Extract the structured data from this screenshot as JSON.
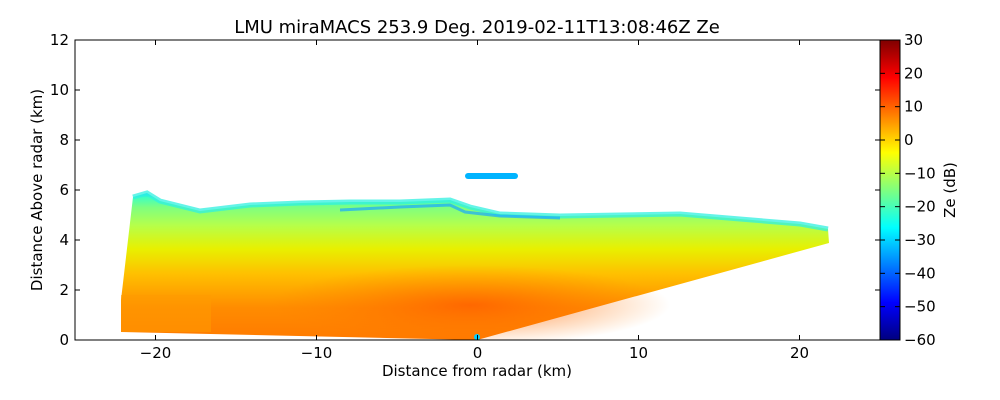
{
  "chart_data": {
    "type": "heatmap",
    "title": "LMU miraMACS 253.9 Deg. 2019-02-11T13:08:46Z  Ze",
    "xlabel": "Distance from radar (km)",
    "ylabel": "Distance Above radar  (km)",
    "xlim": [
      -25,
      25
    ],
    "ylim": [
      0,
      12
    ],
    "x_ticks": [
      -20,
      -10,
      0,
      10,
      20
    ],
    "x_tick_labels": [
      "−20",
      "−10",
      "0",
      "10",
      "20"
    ],
    "y_ticks": [
      0,
      2,
      4,
      6,
      8,
      10,
      12
    ],
    "y_tick_labels": [
      "0",
      "2",
      "4",
      "6",
      "8",
      "10",
      "12"
    ],
    "colorbar": {
      "label": "Ze (dB)",
      "range": [
        -60,
        30
      ],
      "ticks": [
        30,
        20,
        10,
        0,
        -10,
        -20,
        -30,
        -40,
        -50,
        -60
      ],
      "tick_labels": [
        "30",
        "20",
        "10",
        "0",
        "−10",
        "−20",
        "−30",
        "−40",
        "−50",
        "−60"
      ],
      "colormap": "jet"
    },
    "scan": {
      "azimuth_deg": 253.9,
      "timestamp": "2019-02-11T13:08:46Z",
      "variable": "Ze",
      "echo_region_km": {
        "left_edge_x": -22,
        "left_edge_y_range": [
          0.3,
          5.7
        ],
        "right_edge_x": 22,
        "right_edge_y_range": [
          3.8,
          4.4
        ],
        "cloud_top_y_range": [
          4.4,
          5.8
        ],
        "isolated_layer": {
          "x_range": [
            -0.7,
            2.5
          ],
          "y": 6.5
        }
      },
      "reflectivity_dB": {
        "near_surface": 10,
        "mid_layer": -5,
        "cloud_top": -28
      }
    }
  },
  "colors": {
    "jet_stops": [
      "#00007f",
      "#0000ff",
      "#007fff",
      "#00ffff",
      "#7fff7f",
      "#ffff00",
      "#ff7f00",
      "#ff0000",
      "#7f0000"
    ]
  }
}
